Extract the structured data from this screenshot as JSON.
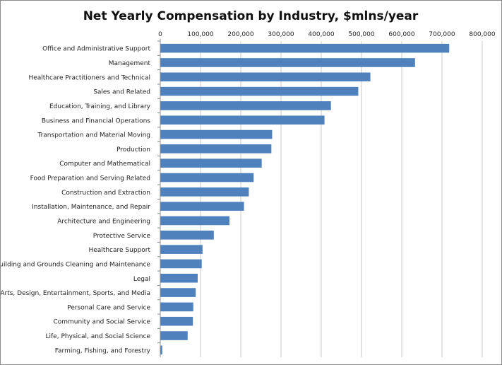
{
  "chart_data": {
    "type": "bar",
    "orientation": "horizontal",
    "title": "Net Yearly Compensation by Industry, $mlns/year",
    "xlabel": "",
    "ylabel": "",
    "xlim": [
      0,
      800000
    ],
    "x_ticks": [
      "0",
      "100,000",
      "200,000",
      "300,000",
      "400,000",
      "500,000",
      "600,000",
      "700,000",
      "800,000"
    ],
    "x_axis_position": "top",
    "grid": true,
    "legend": "none",
    "bar_color": "#4f81bd",
    "categories": [
      "Office and Administrative Support",
      "Management",
      "Healthcare Practitioners and Technical",
      "Sales and Related",
      "Education, Training, and Library",
      "Business and Financial Operations",
      "Transportation and Material Moving",
      "Production",
      "Computer and Mathematical",
      "Food Preparation and Serving Related",
      "Construction and Extraction",
      "Installation, Maintenance, and Repair",
      "Architecture and Engineering",
      "Protective Service",
      "Healthcare Support",
      "Building and Grounds Cleaning and Maintenance",
      "Legal",
      "Arts, Design, Entertainment, Sports, and Media",
      "Personal Care and Service",
      "Community and Social Service",
      "Life, Physical, and Social Science",
      "Farming, Fishing, and Forestry"
    ],
    "values": [
      718000,
      633000,
      522000,
      492000,
      424000,
      408000,
      278000,
      276000,
      252000,
      232000,
      220000,
      208000,
      172000,
      133000,
      105000,
      103000,
      93000,
      88000,
      82000,
      81000,
      68000,
      5000
    ]
  }
}
